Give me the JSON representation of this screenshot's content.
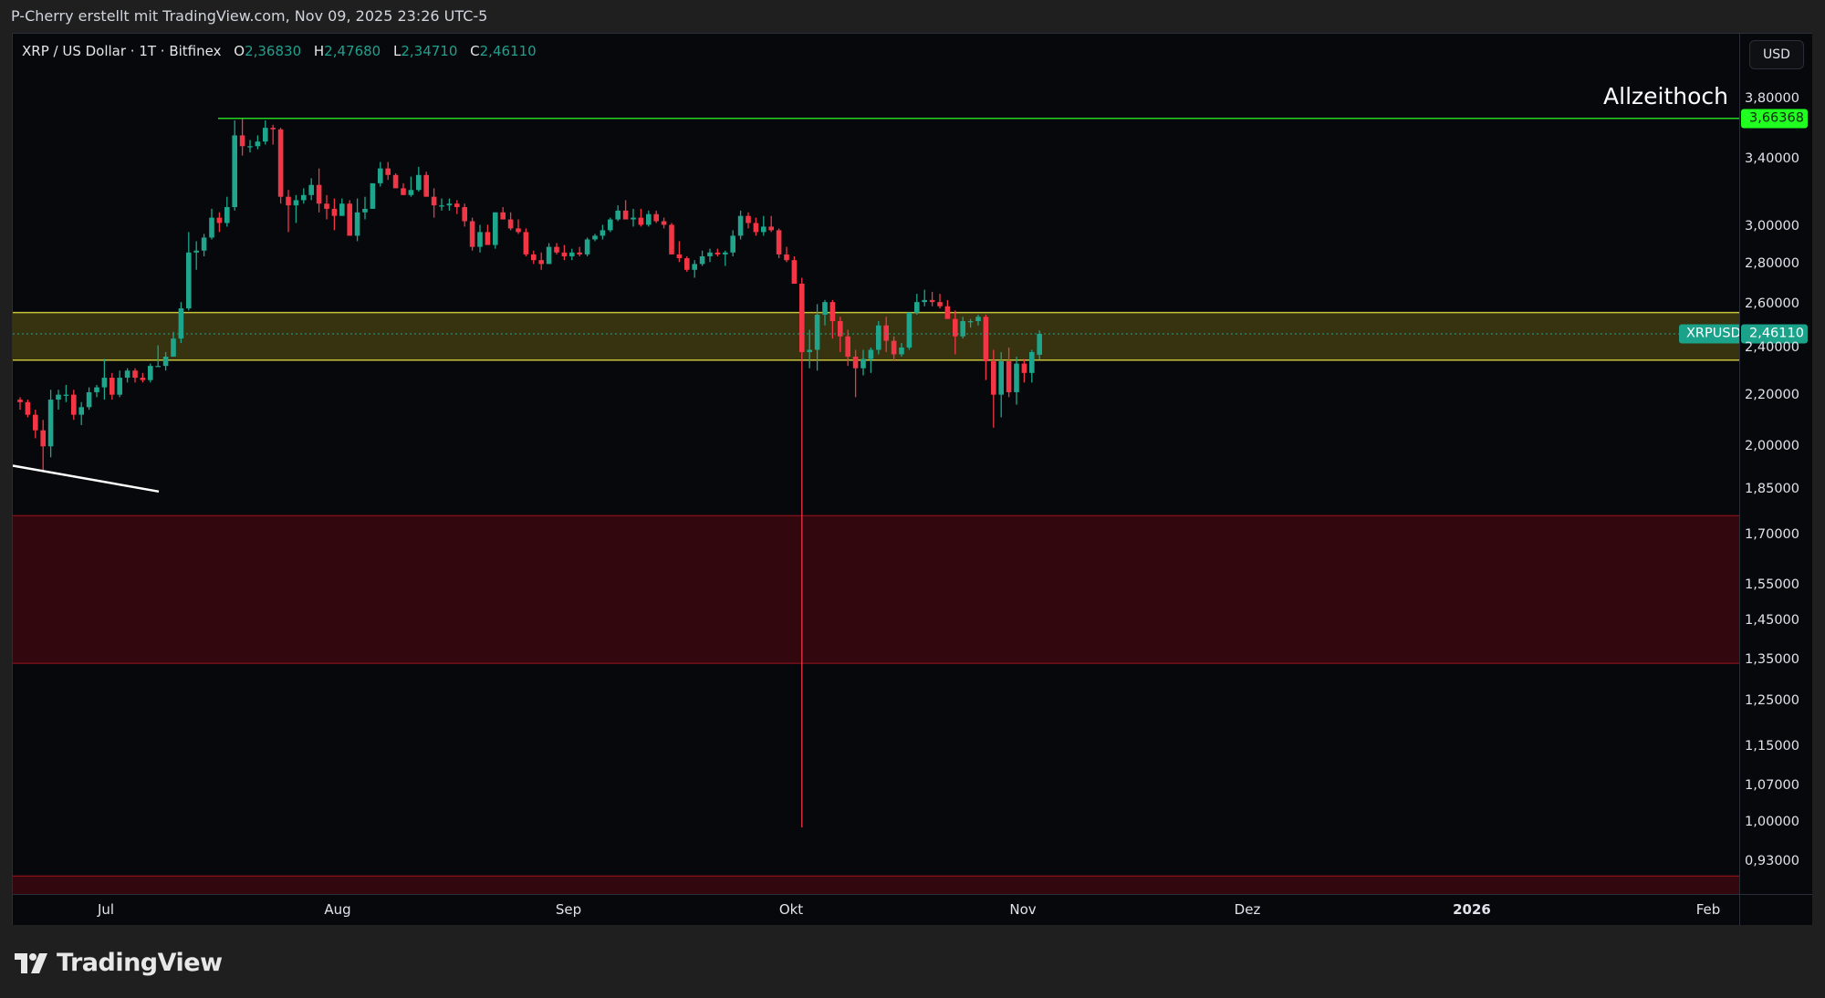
{
  "header": {
    "attribution": "P-Cherry erstellt mit TradingView.com, Nov 09, 2025 23:26 UTC-5"
  },
  "legend": {
    "symbol_line": "XRP / US Dollar · 1T · Bitfinex",
    "o_key": "O",
    "open": "2,36830",
    "h_key": "H",
    "high": "2,47680",
    "l_key": "L",
    "low": "2,34710",
    "c_key": "C",
    "close": "2,46110"
  },
  "annotations": {
    "ath_text": "Allzeithoch",
    "ath_price": "3,66368",
    "symbol_tag": "XRPUSD",
    "last_price": "2,46110"
  },
  "price_axis": {
    "currency": "USD",
    "ticks": [
      "3,80000",
      "3,40000",
      "3,00000",
      "2,80000",
      "2,60000",
      "2,40000",
      "2,20000",
      "2,00000",
      "1,85000",
      "1,70000",
      "1,55000",
      "1,45000",
      "1,35000",
      "1,25000",
      "1,15000",
      "1,07000",
      "1,00000",
      "0,93000"
    ]
  },
  "time_axis": {
    "labels": [
      "Jul",
      "Aug",
      "Sep",
      "Okt",
      "Nov",
      "Dez",
      "2026",
      "Feb"
    ]
  },
  "events": {
    "icons": [
      "lightning-event-icon",
      "us-flag-event-icon"
    ]
  },
  "brand": {
    "name": "TradingView"
  },
  "colors": {
    "up": "#1ea58c",
    "down": "#f23645",
    "ath_line": "#22d622",
    "zone_yellow_fill": "#3a3510",
    "zone_yellow_border": "#c8c23a",
    "zone_red_fill": "#32070d",
    "zone_red_border": "#a3151f",
    "trendline": "#ffffff"
  },
  "chart_data": {
    "type": "candlestick",
    "title": "XRP / US Dollar · 1T · Bitfinex",
    "interval": "1D",
    "ylabel": "USD",
    "y_scale": "log",
    "ylim": [
      0.88,
      3.95
    ],
    "x_range": [
      "2025-06-20",
      "2026-02-10"
    ],
    "ohlc_last": {
      "open": 2.3683,
      "high": 2.4768,
      "low": 2.3471,
      "close": 2.4611
    },
    "horizontal_levels": [
      {
        "name": "Allzeithoch",
        "price": 3.66368,
        "color": "#22d622"
      }
    ],
    "zones": [
      {
        "name": "support-resistance-yellow",
        "from": 2.345,
        "to": 2.56
      },
      {
        "name": "demand-red-upper",
        "from": 1.34,
        "to": 1.76
      },
      {
        "name": "demand-red-lower",
        "from": 0.8,
        "to": 0.905
      }
    ],
    "trendline": {
      "from": {
        "date": "2025-06-20",
        "price": 1.93
      },
      "to": {
        "date": "2025-07-02",
        "price": 1.84
      }
    },
    "candles": [
      [
        2.18,
        2.19,
        2.14,
        2.17
      ],
      [
        2.17,
        2.18,
        2.11,
        2.12
      ],
      [
        2.12,
        2.14,
        2.03,
        2.06
      ],
      [
        2.06,
        2.1,
        1.91,
        2.0
      ],
      [
        2.0,
        2.22,
        1.96,
        2.18
      ],
      [
        2.18,
        2.22,
        2.14,
        2.2
      ],
      [
        2.2,
        2.24,
        2.17,
        2.2
      ],
      [
        2.2,
        2.22,
        2.1,
        2.12
      ],
      [
        2.12,
        2.17,
        2.08,
        2.15
      ],
      [
        2.15,
        2.23,
        2.14,
        2.21
      ],
      [
        2.21,
        2.24,
        2.19,
        2.23
      ],
      [
        2.23,
        2.35,
        2.18,
        2.27
      ],
      [
        2.27,
        2.29,
        2.18,
        2.2
      ],
      [
        2.2,
        2.3,
        2.19,
        2.27
      ],
      [
        2.27,
        2.31,
        2.25,
        2.3
      ],
      [
        2.3,
        2.31,
        2.25,
        2.27
      ],
      [
        2.27,
        2.29,
        2.25,
        2.26
      ],
      [
        2.26,
        2.33,
        2.25,
        2.32
      ],
      [
        2.32,
        2.41,
        2.32,
        2.32
      ],
      [
        2.32,
        2.38,
        2.3,
        2.36
      ],
      [
        2.36,
        2.47,
        2.36,
        2.44
      ],
      [
        2.44,
        2.61,
        2.42,
        2.58
      ],
      [
        2.58,
        2.97,
        2.57,
        2.86
      ],
      [
        2.86,
        2.92,
        2.77,
        2.87
      ],
      [
        2.87,
        2.96,
        2.84,
        2.94
      ],
      [
        2.94,
        3.1,
        2.93,
        3.05
      ],
      [
        3.05,
        3.08,
        2.97,
        3.02
      ],
      [
        3.02,
        3.17,
        3.0,
        3.11
      ],
      [
        3.11,
        3.65,
        3.09,
        3.55
      ],
      [
        3.55,
        3.66,
        3.42,
        3.48
      ],
      [
        3.48,
        3.52,
        3.44,
        3.48
      ],
      [
        3.48,
        3.55,
        3.46,
        3.51
      ],
      [
        3.51,
        3.65,
        3.49,
        3.6
      ],
      [
        3.6,
        3.62,
        3.49,
        3.59
      ],
      [
        3.59,
        3.6,
        3.13,
        3.17
      ],
      [
        3.17,
        3.21,
        2.97,
        3.12
      ],
      [
        3.12,
        3.18,
        3.02,
        3.15
      ],
      [
        3.15,
        3.22,
        3.13,
        3.18
      ],
      [
        3.18,
        3.28,
        3.15,
        3.24
      ],
      [
        3.24,
        3.34,
        3.08,
        3.13
      ],
      [
        3.13,
        3.18,
        3.04,
        3.1
      ],
      [
        3.1,
        3.16,
        2.98,
        3.06
      ],
      [
        3.06,
        3.16,
        3.06,
        3.13
      ],
      [
        3.13,
        3.15,
        2.95,
        2.95
      ],
      [
        2.95,
        3.16,
        2.92,
        3.08
      ],
      [
        3.08,
        3.17,
        3.04,
        3.1
      ],
      [
        3.1,
        3.22,
        3.1,
        3.25
      ],
      [
        3.25,
        3.38,
        3.23,
        3.34
      ],
      [
        3.34,
        3.38,
        3.27,
        3.3
      ],
      [
        3.3,
        3.31,
        3.22,
        3.22
      ],
      [
        3.22,
        3.25,
        3.18,
        3.18
      ],
      [
        3.18,
        3.29,
        3.17,
        3.21
      ],
      [
        3.21,
        3.35,
        3.2,
        3.3
      ],
      [
        3.3,
        3.32,
        3.17,
        3.17
      ],
      [
        3.17,
        3.22,
        3.05,
        3.12
      ],
      [
        3.12,
        3.16,
        3.09,
        3.12
      ],
      [
        3.12,
        3.16,
        3.09,
        3.13
      ],
      [
        3.13,
        3.15,
        3.07,
        3.11
      ],
      [
        3.11,
        3.13,
        3.0,
        3.03
      ],
      [
        3.03,
        3.05,
        2.87,
        2.89
      ],
      [
        2.89,
        3.01,
        2.86,
        2.97
      ],
      [
        2.97,
        3.01,
        2.91,
        2.9
      ],
      [
        2.9,
        3.08,
        2.88,
        3.08
      ],
      [
        3.08,
        3.11,
        3.04,
        3.04
      ],
      [
        3.04,
        3.08,
        2.98,
        2.99
      ],
      [
        2.99,
        3.04,
        2.96,
        2.97
      ],
      [
        2.97,
        2.99,
        2.84,
        2.85
      ],
      [
        2.85,
        2.87,
        2.8,
        2.82
      ],
      [
        2.82,
        2.86,
        2.77,
        2.8
      ],
      [
        2.8,
        2.91,
        2.8,
        2.89
      ],
      [
        2.89,
        2.91,
        2.85,
        2.86
      ],
      [
        2.86,
        2.9,
        2.82,
        2.84
      ],
      [
        2.84,
        2.88,
        2.82,
        2.86
      ],
      [
        2.86,
        2.89,
        2.84,
        2.85
      ],
      [
        2.85,
        2.94,
        2.84,
        2.93
      ],
      [
        2.93,
        2.96,
        2.92,
        2.95
      ],
      [
        2.95,
        3.01,
        2.93,
        2.98
      ],
      [
        2.98,
        3.05,
        2.97,
        3.04
      ],
      [
        3.04,
        3.12,
        3.03,
        3.09
      ],
      [
        3.09,
        3.15,
        3.04,
        3.04
      ],
      [
        3.04,
        3.1,
        3.0,
        3.05
      ],
      [
        3.05,
        3.1,
        3.0,
        3.01
      ],
      [
        3.01,
        3.09,
        3.0,
        3.07
      ],
      [
        3.07,
        3.09,
        3.02,
        3.03
      ],
      [
        3.03,
        3.05,
        2.99,
        3.01
      ],
      [
        3.01,
        3.02,
        2.87,
        2.85
      ],
      [
        2.85,
        2.92,
        2.81,
        2.83
      ],
      [
        2.83,
        2.84,
        2.76,
        2.77
      ],
      [
        2.77,
        2.82,
        2.73,
        2.8
      ],
      [
        2.8,
        2.87,
        2.79,
        2.84
      ],
      [
        2.84,
        2.88,
        2.81,
        2.86
      ],
      [
        2.86,
        2.88,
        2.84,
        2.85
      ],
      [
        2.85,
        2.87,
        2.79,
        2.86
      ],
      [
        2.86,
        2.98,
        2.84,
        2.95
      ],
      [
        2.95,
        3.09,
        2.93,
        3.06
      ],
      [
        3.06,
        3.08,
        2.99,
        3.02
      ],
      [
        3.02,
        3.05,
        2.95,
        2.97
      ],
      [
        2.97,
        3.06,
        2.95,
        3.0
      ],
      [
        3.0,
        3.06,
        2.97,
        2.98
      ],
      [
        2.98,
        2.99,
        2.83,
        2.85
      ],
      [
        2.85,
        2.89,
        2.81,
        2.82
      ],
      [
        2.82,
        2.84,
        2.71,
        2.7
      ],
      [
        2.7,
        2.73,
        0.99,
        2.38
      ],
      [
        2.38,
        2.48,
        2.31,
        2.39
      ],
      [
        2.39,
        2.6,
        2.3,
        2.55
      ],
      [
        2.55,
        2.62,
        2.5,
        2.61
      ],
      [
        2.61,
        2.62,
        2.44,
        2.52
      ],
      [
        2.52,
        2.54,
        2.38,
        2.45
      ],
      [
        2.45,
        2.48,
        2.32,
        2.36
      ],
      [
        2.36,
        2.39,
        2.19,
        2.31
      ],
      [
        2.31,
        2.39,
        2.28,
        2.35
      ],
      [
        2.35,
        2.4,
        2.29,
        2.39
      ],
      [
        2.39,
        2.52,
        2.37,
        2.5
      ],
      [
        2.5,
        2.54,
        2.38,
        2.43
      ],
      [
        2.43,
        2.45,
        2.34,
        2.37
      ],
      [
        2.37,
        2.42,
        2.36,
        2.4
      ],
      [
        2.4,
        2.55,
        2.39,
        2.56
      ],
      [
        2.56,
        2.65,
        2.55,
        2.61
      ],
      [
        2.61,
        2.67,
        2.59,
        2.62
      ],
      [
        2.62,
        2.66,
        2.59,
        2.61
      ],
      [
        2.61,
        2.65,
        2.58,
        2.59
      ],
      [
        2.59,
        2.62,
        2.53,
        2.53
      ],
      [
        2.53,
        2.57,
        2.37,
        2.45
      ],
      [
        2.45,
        2.54,
        2.44,
        2.52
      ],
      [
        2.52,
        2.53,
        2.49,
        2.52
      ],
      [
        2.52,
        2.55,
        2.5,
        2.54
      ],
      [
        2.54,
        2.55,
        2.26,
        2.34
      ],
      [
        2.34,
        2.39,
        2.07,
        2.2
      ],
      [
        2.2,
        2.38,
        2.11,
        2.34
      ],
      [
        2.34,
        2.4,
        2.19,
        2.21
      ],
      [
        2.21,
        2.36,
        2.16,
        2.33
      ],
      [
        2.33,
        2.35,
        2.25,
        2.29
      ],
      [
        2.29,
        2.39,
        2.25,
        2.38
      ],
      [
        2.3683,
        2.4768,
        2.3471,
        2.4611
      ]
    ]
  }
}
